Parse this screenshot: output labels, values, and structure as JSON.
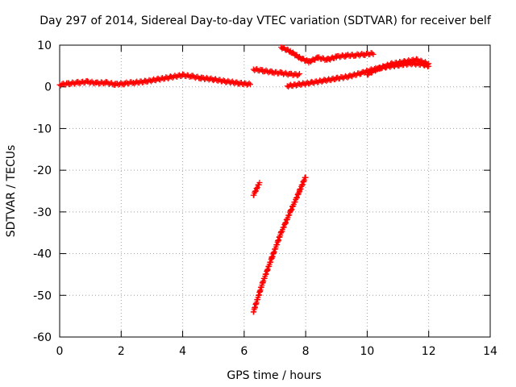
{
  "chart_data": {
    "type": "scatter",
    "title": "Day 297 of 2014, Sidereal Day-to-day VTEC variation (SDTVAR) for receiver belf",
    "xlabel": "GPS time / hours",
    "ylabel": "SDTVAR / TECUs",
    "xlim": [
      0,
      14
    ],
    "ylim": [
      -60,
      10
    ],
    "xticks": [
      "0",
      "2",
      "4",
      "6",
      "8",
      "10",
      "12",
      "14"
    ],
    "yticks": [
      "10",
      "0",
      "-10",
      "-20",
      "-30",
      "-40",
      "-50",
      "-60"
    ],
    "grid": true,
    "legend": "none",
    "marker": "plus",
    "color": "#ff0000",
    "series": [
      {
        "segments": [
          {
            "x": [
              0.0,
              0.3,
              0.6,
              0.9,
              1.2,
              1.5,
              1.8,
              2.1,
              2.4
            ],
            "y": [
              0.5,
              0.8,
              1.0,
              1.2,
              0.9,
              1.0,
              0.6,
              0.8,
              1.1
            ]
          },
          {
            "x": [
              2.4,
              2.8,
              3.2,
              3.6,
              4.0,
              4.3,
              4.6,
              5.0,
              5.4,
              5.8,
              6.2
            ],
            "y": [
              1.0,
              1.3,
              1.8,
              2.3,
              2.8,
              2.5,
              2.1,
              1.8,
              1.3,
              0.9,
              0.6
            ]
          },
          {
            "x": [
              6.3,
              6.6,
              6.9,
              7.2,
              7.5,
              7.8
            ],
            "y": [
              4.2,
              3.9,
              3.5,
              3.3,
              3.0,
              2.9
            ]
          },
          {
            "x": [
              7.2,
              7.5,
              7.8,
              8.1,
              8.4,
              8.7,
              9.0,
              9.3,
              9.6,
              9.9,
              10.2
            ],
            "y": [
              9.5,
              8.5,
              7.0,
              6.0,
              7.0,
              6.5,
              7.2,
              7.5,
              7.6,
              7.8,
              8.0
            ]
          },
          {
            "x": [
              7.4,
              7.8,
              8.2,
              8.6,
              9.0,
              9.4,
              9.8,
              10.2,
              10.6,
              11.0,
              11.4,
              11.8,
              12.0
            ],
            "y": [
              0.2,
              0.6,
              1.0,
              1.5,
              2.0,
              2.5,
              3.3,
              4.2,
              4.8,
              5.2,
              5.6,
              5.4,
              5.0
            ]
          },
          {
            "x": [
              10.0,
              10.4,
              10.8,
              11.2,
              11.6,
              12.0
            ],
            "y": [
              3.0,
              4.5,
              5.5,
              6.0,
              6.5,
              5.5
            ]
          },
          {
            "x": [
              6.3,
              6.4,
              6.5
            ],
            "y": [
              -26.0,
              -24.5,
              -23.0
            ]
          },
          {
            "x": [
              6.3,
              6.6,
              6.9,
              7.2,
              7.5,
              7.8,
              8.0
            ],
            "y": [
              -54.0,
              -47.0,
              -41.0,
              -35.0,
              -30.0,
              -25.0,
              -21.5
            ]
          }
        ]
      }
    ]
  }
}
